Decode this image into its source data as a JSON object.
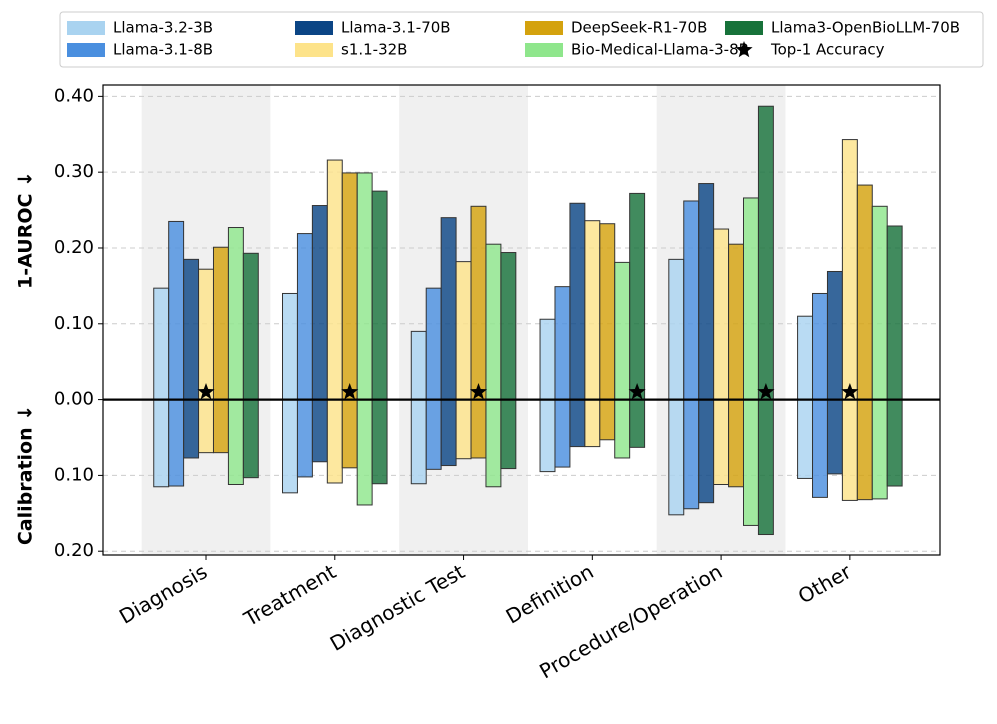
{
  "chart_data": {
    "type": "bar",
    "y_labels": [
      "1-AUROC ↓",
      "Calibration ↓"
    ],
    "categories": [
      "Diagnosis",
      "Treatment",
      "Diagnostic Test",
      "Definition",
      "Procedure/Operation",
      "Other"
    ],
    "series": [
      {
        "name": "Llama-3.2-3B",
        "color": "#a9d3f0",
        "values": [
          0.147,
          0.14,
          0.09,
          0.106,
          0.185,
          0.11
        ],
        "calibration": [
          -0.115,
          -0.123,
          -0.111,
          -0.095,
          -0.152,
          -0.104
        ]
      },
      {
        "name": "Llama-3.1-8B",
        "color": "#4a8fdf",
        "values": [
          0.235,
          0.219,
          0.147,
          0.149,
          0.262,
          0.14
        ],
        "calibration": [
          -0.114,
          -0.102,
          -0.092,
          -0.089,
          -0.144,
          -0.129
        ]
      },
      {
        "name": "Llama-3.1-70B",
        "color": "#0b4585",
        "values": [
          0.185,
          0.256,
          0.24,
          0.259,
          0.285,
          0.169
        ],
        "calibration": [
          -0.077,
          -0.082,
          -0.087,
          -0.062,
          -0.136,
          -0.098
        ]
      },
      {
        "name": "s1.1-32B",
        "color": "#fde38a",
        "values": [
          0.172,
          0.316,
          0.182,
          0.236,
          0.225,
          0.343
        ],
        "calibration": [
          -0.07,
          -0.11,
          -0.078,
          -0.062,
          -0.112,
          -0.133
        ]
      },
      {
        "name": "DeepSeek-R1-70B",
        "color": "#d4a20e",
        "values": [
          0.201,
          0.299,
          0.255,
          0.232,
          0.205,
          0.283
        ],
        "calibration": [
          -0.07,
          -0.09,
          -0.077,
          -0.053,
          -0.115,
          -0.132
        ]
      },
      {
        "name": "Bio-Medical-Llama-3-8B",
        "color": "#8fe68c",
        "values": [
          0.227,
          0.299,
          0.205,
          0.181,
          0.266,
          0.255
        ],
        "calibration": [
          -0.112,
          -0.139,
          -0.115,
          -0.077,
          -0.166,
          -0.131
        ]
      },
      {
        "name": "Llama3-OpenBioLLM-70B",
        "color": "#17723a",
        "values": [
          0.193,
          0.275,
          0.194,
          0.272,
          0.387,
          0.229
        ],
        "calibration": [
          -0.103,
          -0.111,
          -0.091,
          -0.063,
          -0.178,
          -0.114
        ]
      }
    ],
    "top1_accuracy": {
      "name": "Top-1 Accuracy",
      "models": [
        "s1.1-32B",
        "DeepSeek-R1-70B",
        "DeepSeek-R1-70B",
        "Llama3-OpenBioLLM-70B",
        "Llama3-OpenBioLLM-70B",
        "s1.1-32B"
      ],
      "values": [
        0.01,
        0.01,
        0.01,
        0.01,
        0.01,
        0.01
      ]
    },
    "ylim": [
      -0.205,
      0.415
    ],
    "yticks": [
      {
        "value": 0.4,
        "label": "0.40"
      },
      {
        "value": 0.3,
        "label": "0.30"
      },
      {
        "value": 0.2,
        "label": "0.20"
      },
      {
        "value": 0.1,
        "label": "0.10"
      },
      {
        "value": 0,
        "label": "0.00"
      },
      {
        "value": -0.1,
        "label": "0.10"
      },
      {
        "value": -0.2,
        "label": "0.20"
      }
    ],
    "grid": true,
    "legend": "top"
  }
}
